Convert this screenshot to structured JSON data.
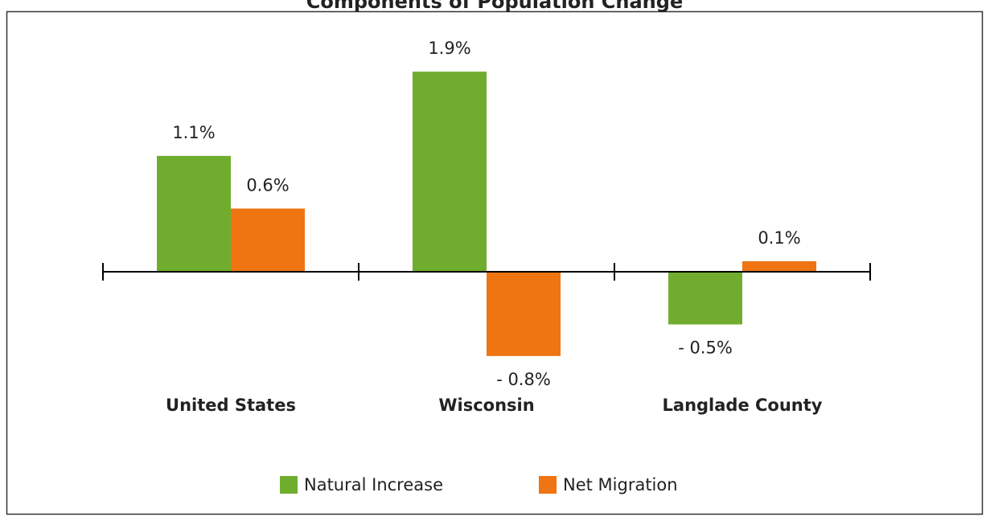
{
  "chart_data": {
    "type": "bar",
    "title": "Components of Population Change",
    "categories": [
      "United States",
      "Wisconsin",
      "Langlade County"
    ],
    "series": [
      {
        "name": "Natural Increase",
        "color": "#70ad2f",
        "values": [
          1.1,
          1.9,
          -0.5
        ],
        "value_labels": [
          "1.1%",
          "1.9%",
          "- 0.5%"
        ]
      },
      {
        "name": "Net Migration",
        "color": "#ef7412",
        "values": [
          0.6,
          -0.8,
          0.1
        ],
        "value_labels": [
          "0.6%",
          "- 0.8%",
          "0.1%"
        ]
      }
    ],
    "legend": "bottom"
  }
}
